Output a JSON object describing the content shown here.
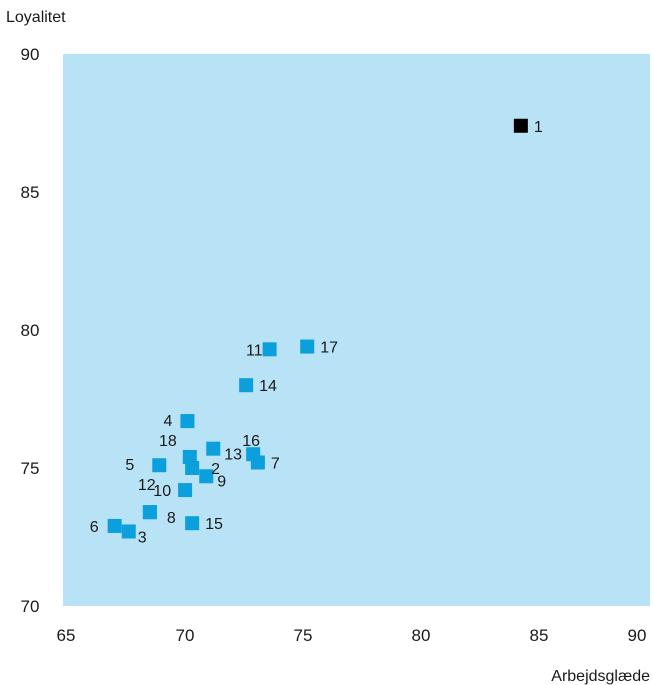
{
  "chart_data": {
    "type": "scatter",
    "ylabel": "Loyalitet",
    "xlabel": "Arbejdsglæde",
    "xlim": [
      65,
      90
    ],
    "ylim": [
      70,
      90
    ],
    "xticks": [
      "65",
      "70",
      "75",
      "80",
      "85",
      "90"
    ],
    "yticks": [
      "90",
      "85",
      "80",
      "75",
      "70"
    ],
    "grid": false,
    "plot_background": "#b8e2f6",
    "points": [
      {
        "label": "1",
        "x": 84.5,
        "y": 87.4,
        "color": "#000000"
      },
      {
        "label": "2",
        "x": 70.5,
        "y": 75.0,
        "color": "#0b9fdc"
      },
      {
        "label": "3",
        "x": 67.8,
        "y": 72.7,
        "color": "#0b9fdc"
      },
      {
        "label": "4",
        "x": 70.3,
        "y": 76.7,
        "color": "#0b9fdc"
      },
      {
        "label": "5",
        "x": 69.1,
        "y": 75.1,
        "color": "#0b9fdc"
      },
      {
        "label": "6",
        "x": 67.2,
        "y": 72.9,
        "color": "#0b9fdc"
      },
      {
        "label": "7",
        "x": 73.3,
        "y": 75.2,
        "color": "#0b9fdc"
      },
      {
        "label": "8",
        "x": 68.7,
        "y": 73.4,
        "color": "#0b9fdc"
      },
      {
        "label": "9",
        "x": 71.1,
        "y": 74.7,
        "color": "#0b9fdc"
      },
      {
        "label": "10",
        "x": 70.2,
        "y": 74.2,
        "color": "#0b9fdc"
      },
      {
        "label": "11",
        "x": 73.8,
        "y": 79.3,
        "color": "#0b9fdc"
      },
      {
        "label": "12",
        "x": 68.7,
        "y": 73.4,
        "color": "#0b9fdc"
      },
      {
        "label": "13",
        "x": 71.4,
        "y": 75.7,
        "color": "#0b9fdc"
      },
      {
        "label": "14",
        "x": 72.8,
        "y": 78.0,
        "color": "#0b9fdc"
      },
      {
        "label": "15",
        "x": 70.5,
        "y": 73.0,
        "color": "#0b9fdc"
      },
      {
        "label": "16",
        "x": 73.1,
        "y": 75.5,
        "color": "#0b9fdc"
      },
      {
        "label": "17",
        "x": 75.4,
        "y": 79.4,
        "color": "#0b9fdc"
      },
      {
        "label": "18",
        "x": 70.4,
        "y": 75.4,
        "color": "#0b9fdc"
      }
    ]
  }
}
